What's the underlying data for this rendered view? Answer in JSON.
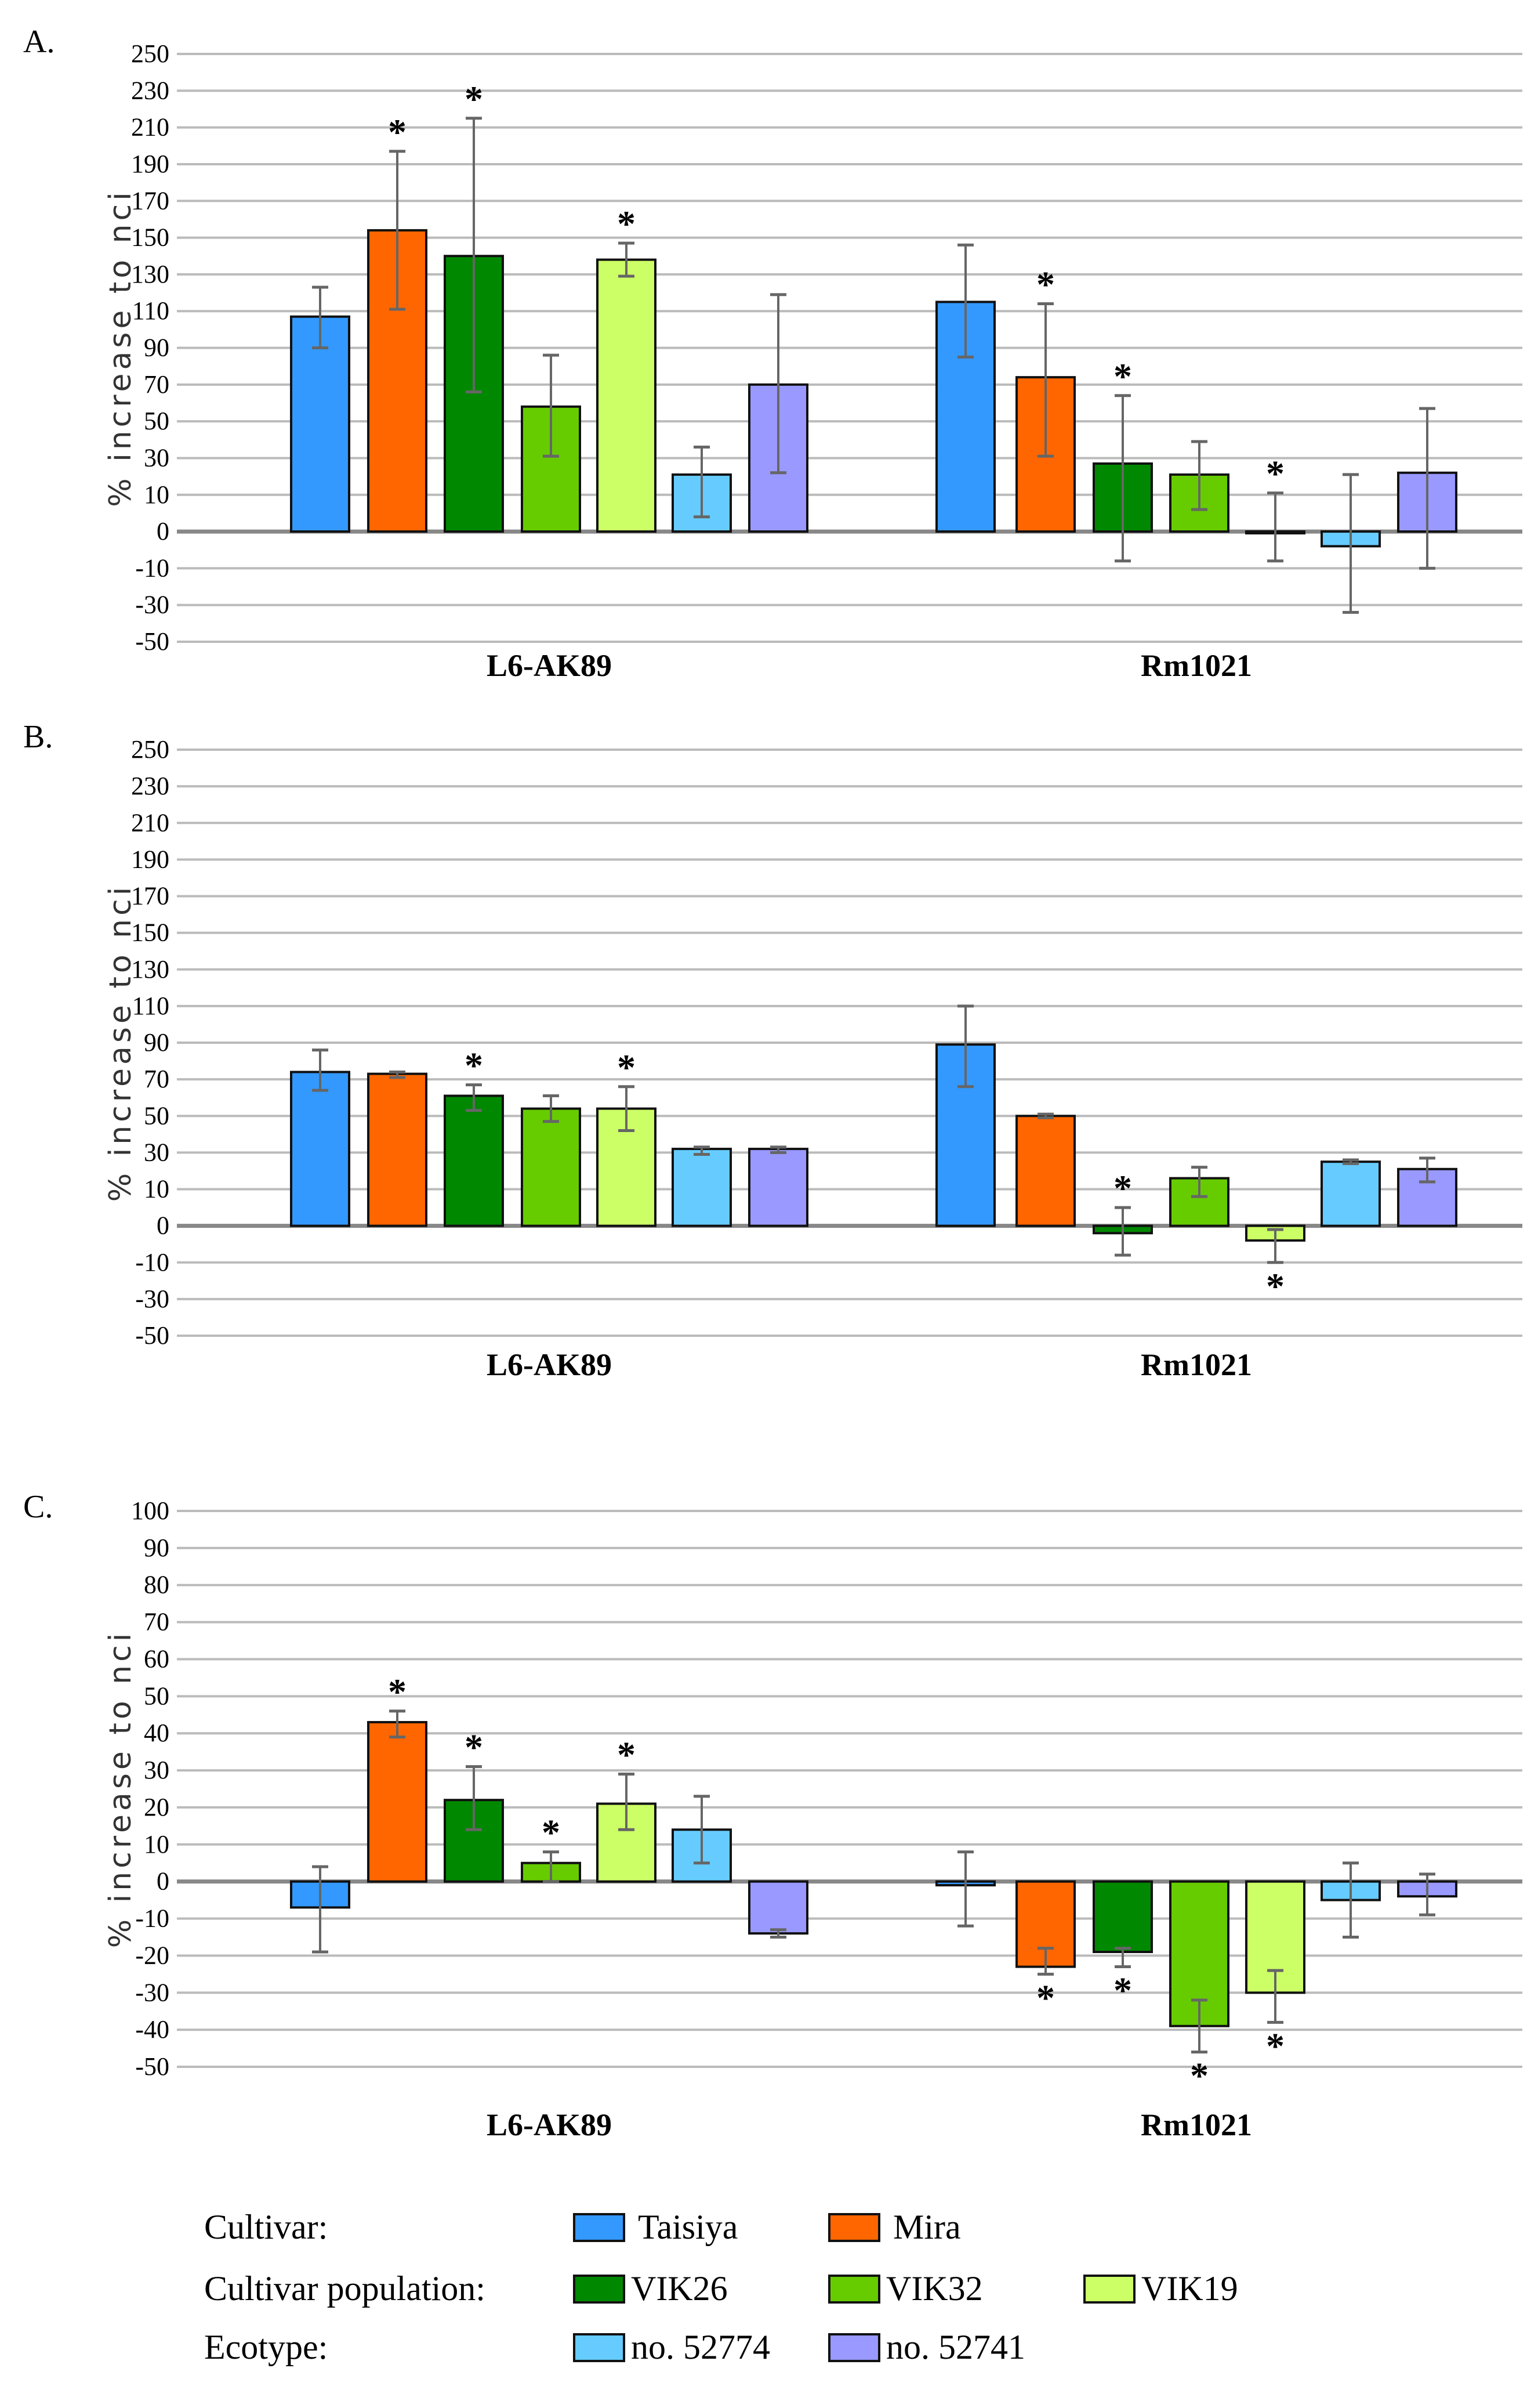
{
  "chart_data": [
    {
      "type": "bar",
      "panel_label": "A.",
      "ylabel": "%  increase to nci",
      "ylim": [
        -50,
        250
      ],
      "yticks": [
        250,
        230,
        210,
        190,
        170,
        150,
        130,
        110,
        90,
        70,
        50,
        30,
        10,
        0,
        -10,
        -30,
        -50
      ],
      "grid": true,
      "categories": [
        "L6-AK89",
        "Rm1021"
      ],
      "series": [
        {
          "name": "Taisiya",
          "values": [
            107,
            115
          ],
          "err_low": [
            90,
            85
          ],
          "err_high": [
            123,
            146
          ],
          "significant": [
            false,
            false
          ]
        },
        {
          "name": "Mira",
          "values": [
            154,
            74
          ],
          "err_low": [
            111,
            31
          ],
          "err_high": [
            197,
            114
          ],
          "significant": [
            true,
            true
          ]
        },
        {
          "name": "VIK26",
          "values": [
            140,
            27
          ],
          "err_low": [
            66,
            -8
          ],
          "err_high": [
            215,
            64
          ],
          "significant": [
            true,
            true
          ]
        },
        {
          "name": "VIK32",
          "values": [
            58,
            21
          ],
          "err_low": [
            31,
            6
          ],
          "err_high": [
            86,
            39
          ],
          "significant": [
            false,
            false
          ]
        },
        {
          "name": "VIK19",
          "values": [
            138,
            0
          ],
          "err_low": [
            129,
            -8
          ],
          "err_high": [
            147,
            11
          ],
          "significant": [
            true,
            true
          ]
        },
        {
          "name": "no. 52774",
          "values": [
            21,
            -4
          ],
          "err_low": [
            4,
            -34
          ],
          "err_high": [
            36,
            21
          ],
          "significant": [
            false,
            false
          ]
        },
        {
          "name": "no. 52741",
          "values": [
            70,
            22
          ],
          "err_low": [
            22,
            -10
          ],
          "err_high": [
            119,
            57
          ],
          "significant": [
            false,
            false
          ]
        }
      ]
    },
    {
      "type": "bar",
      "panel_label": "B.",
      "ylabel": "%  increase to nci",
      "ylim": [
        -50,
        250
      ],
      "yticks": [
        250,
        230,
        210,
        190,
        170,
        150,
        130,
        110,
        90,
        70,
        50,
        30,
        10,
        0,
        -10,
        -30,
        -50
      ],
      "grid": true,
      "categories": [
        "L6-AK89",
        "Rm1021"
      ],
      "series": [
        {
          "name": "Taisiya",
          "values": [
            74,
            89
          ],
          "err_low": [
            64,
            66
          ],
          "err_high": [
            86,
            110
          ],
          "significant": [
            false,
            false
          ]
        },
        {
          "name": "Mira",
          "values": [
            73,
            50
          ],
          "err_low": [
            71,
            49
          ],
          "err_high": [
            74,
            51
          ],
          "significant": [
            false,
            false
          ]
        },
        {
          "name": "VIK26",
          "values": [
            61,
            -2
          ],
          "err_low": [
            53,
            -8
          ],
          "err_high": [
            67,
            5
          ],
          "significant": [
            true,
            true
          ]
        },
        {
          "name": "VIK32",
          "values": [
            54,
            16
          ],
          "err_low": [
            47,
            8
          ],
          "err_high": [
            61,
            22
          ],
          "significant": [
            false,
            false
          ]
        },
        {
          "name": "VIK19",
          "values": [
            54,
            -4
          ],
          "err_low": [
            42,
            -10
          ],
          "err_high": [
            66,
            -1
          ],
          "significant": [
            true,
            true
          ]
        },
        {
          "name": "no. 52774",
          "values": [
            32,
            25
          ],
          "err_low": [
            29,
            24
          ],
          "err_high": [
            33,
            26
          ],
          "significant": [
            false,
            false
          ]
        },
        {
          "name": "no. 52741",
          "values": [
            32,
            21
          ],
          "err_low": [
            30,
            14
          ],
          "err_high": [
            33,
            27
          ],
          "significant": [
            false,
            false
          ]
        }
      ]
    },
    {
      "type": "bar",
      "panel_label": "C.",
      "ylabel": "%  increase to nci",
      "ylim": [
        -50,
        100
      ],
      "yticks": [
        100,
        90,
        80,
        70,
        60,
        50,
        40,
        30,
        20,
        10,
        0,
        -10,
        -20,
        -30,
        -40,
        -50
      ],
      "grid": true,
      "categories": [
        "L6-AK89",
        "Rm1021"
      ],
      "series": [
        {
          "name": "Taisiya",
          "values": [
            -7,
            -1
          ],
          "err_low": [
            -19,
            -12
          ],
          "err_high": [
            4,
            8
          ],
          "significant": [
            false,
            false
          ]
        },
        {
          "name": "Mira",
          "values": [
            43,
            -23
          ],
          "err_low": [
            39,
            -25
          ],
          "err_high": [
            46,
            -18
          ],
          "significant": [
            true,
            true
          ]
        },
        {
          "name": "VIK26",
          "values": [
            22,
            -19
          ],
          "err_low": [
            14,
            -23
          ],
          "err_high": [
            31,
            -18
          ],
          "significant": [
            true,
            true
          ]
        },
        {
          "name": "VIK32",
          "values": [
            5,
            -39
          ],
          "err_low": [
            0,
            -46
          ],
          "err_high": [
            8,
            -32
          ],
          "significant": [
            true,
            true
          ]
        },
        {
          "name": "VIK19",
          "values": [
            21,
            -30
          ],
          "err_low": [
            14,
            -38
          ],
          "err_high": [
            29,
            -24
          ],
          "significant": [
            true,
            true
          ]
        },
        {
          "name": "no. 52774",
          "values": [
            14,
            -5
          ],
          "err_low": [
            5,
            -15
          ],
          "err_high": [
            23,
            5
          ],
          "significant": [
            false,
            false
          ]
        },
        {
          "name": "no. 52741",
          "values": [
            -14,
            -4
          ],
          "err_low": [
            -15,
            -9
          ],
          "err_high": [
            -13,
            2
          ],
          "significant": [
            false,
            false
          ]
        }
      ]
    }
  ],
  "significance_marker": "*",
  "colors": {
    "Taisiya": "#3399ff",
    "Mira": "#ff6600",
    "VIK26": "#008800",
    "VIK32": "#66cc00",
    "VIK19": "#ccff66",
    "no. 52774": "#66ccff",
    "no. 52741": "#9999ff"
  },
  "legend": {
    "rows": [
      {
        "label": "Cultivar:",
        "items": [
          "Taisiya",
          "Mira"
        ]
      },
      {
        "label": "Cultivar population:",
        "items": [
          "VIK26",
          "VIK32",
          "VIK19"
        ]
      },
      {
        "label": "Ecotype:",
        "items": [
          "no. 52774",
          "no. 52741"
        ]
      }
    ]
  }
}
